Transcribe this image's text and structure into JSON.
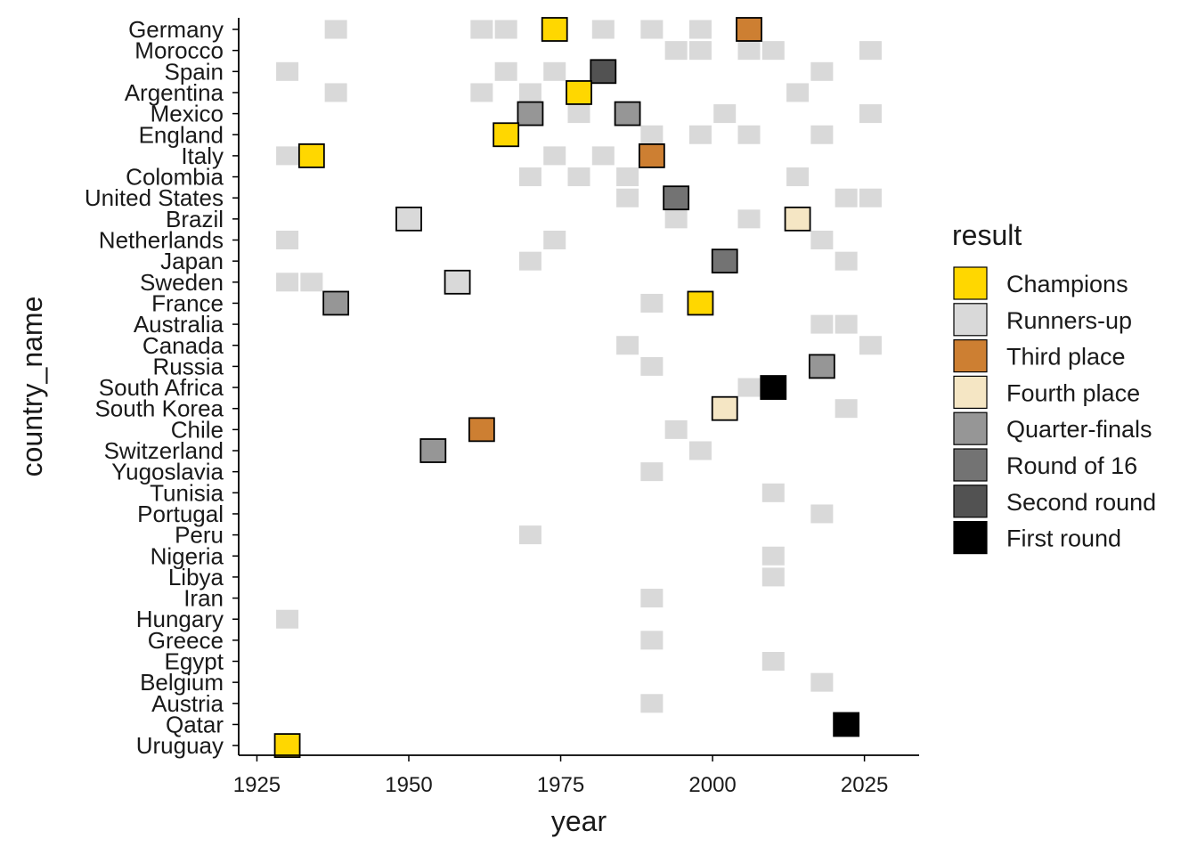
{
  "chart_data": {
    "type": "heatmap",
    "title": "",
    "xlabel": "year",
    "ylabel": "country_name",
    "xlim": [
      1922,
      2034
    ],
    "x_ticks": [
      1925,
      1950,
      1975,
      2000,
      2025
    ],
    "grid": false,
    "legend_position": "right",
    "legend_title": "result",
    "categories": [
      "Germany",
      "Morocco",
      "Spain",
      "Argentina",
      "Mexico",
      "England",
      "Italy",
      "Colombia",
      "United States",
      "Brazil",
      "Netherlands",
      "Japan",
      "Sweden",
      "France",
      "Australia",
      "Canada",
      "Russia",
      "South Africa",
      "South Korea",
      "Chile",
      "Switzerland",
      "Yugoslavia",
      "Tunisia",
      "Portugal",
      "Peru",
      "Nigeria",
      "Libya",
      "Iran",
      "Hungary",
      "Greece",
      "Egypt",
      "Belgium",
      "Austria",
      "Qatar",
      "Uruguay"
    ],
    "legend": [
      {
        "label": "Champions",
        "color": "#FFD700"
      },
      {
        "label": "Runners-up",
        "color": "#D9D9D9"
      },
      {
        "label": "Third place",
        "color": "#CD7F32"
      },
      {
        "label": "Fourth place",
        "color": "#F5E6C4"
      },
      {
        "label": "Quarter-finals",
        "color": "#969696"
      },
      {
        "label": "Round of 16",
        "color": "#737373"
      },
      {
        "label": "Second round",
        "color": "#525252"
      },
      {
        "label": "First round",
        "color": "#000000"
      }
    ],
    "background_color": "#D9D9D9",
    "background_points": [
      {
        "country": "Germany",
        "year": 1938
      },
      {
        "country": "Germany",
        "year": 1962
      },
      {
        "country": "Germany",
        "year": 1966
      },
      {
        "country": "Germany",
        "year": 1982
      },
      {
        "country": "Germany",
        "year": 1990
      },
      {
        "country": "Germany",
        "year": 1998
      },
      {
        "country": "Morocco",
        "year": 1994
      },
      {
        "country": "Morocco",
        "year": 1998
      },
      {
        "country": "Morocco",
        "year": 2006
      },
      {
        "country": "Morocco",
        "year": 2010
      },
      {
        "country": "Morocco",
        "year": 2026
      },
      {
        "country": "Spain",
        "year": 1930
      },
      {
        "country": "Spain",
        "year": 1966
      },
      {
        "country": "Spain",
        "year": 1974
      },
      {
        "country": "Spain",
        "year": 2018
      },
      {
        "country": "Argentina",
        "year": 1938
      },
      {
        "country": "Argentina",
        "year": 1962
      },
      {
        "country": "Argentina",
        "year": 1970
      },
      {
        "country": "Argentina",
        "year": 2014
      },
      {
        "country": "Mexico",
        "year": 1978
      },
      {
        "country": "Mexico",
        "year": 2002
      },
      {
        "country": "Mexico",
        "year": 2026
      },
      {
        "country": "England",
        "year": 1990
      },
      {
        "country": "England",
        "year": 1998
      },
      {
        "country": "England",
        "year": 2006
      },
      {
        "country": "England",
        "year": 2018
      },
      {
        "country": "Italy",
        "year": 1930
      },
      {
        "country": "Italy",
        "year": 1974
      },
      {
        "country": "Italy",
        "year": 1982
      },
      {
        "country": "Colombia",
        "year": 1970
      },
      {
        "country": "Colombia",
        "year": 1978
      },
      {
        "country": "Colombia",
        "year": 1986
      },
      {
        "country": "Colombia",
        "year": 2014
      },
      {
        "country": "United States",
        "year": 1986
      },
      {
        "country": "United States",
        "year": 2022
      },
      {
        "country": "United States",
        "year": 2026
      },
      {
        "country": "Brazil",
        "year": 1994
      },
      {
        "country": "Brazil",
        "year": 2006
      },
      {
        "country": "Netherlands",
        "year": 1930
      },
      {
        "country": "Netherlands",
        "year": 1974
      },
      {
        "country": "Netherlands",
        "year": 2018
      },
      {
        "country": "Japan",
        "year": 1970
      },
      {
        "country": "Japan",
        "year": 2022
      },
      {
        "country": "Sweden",
        "year": 1930
      },
      {
        "country": "Sweden",
        "year": 1934
      },
      {
        "country": "France",
        "year": 1990
      },
      {
        "country": "Australia",
        "year": 2018
      },
      {
        "country": "Australia",
        "year": 2022
      },
      {
        "country": "Canada",
        "year": 1986
      },
      {
        "country": "Canada",
        "year": 2026
      },
      {
        "country": "Russia",
        "year": 1990
      },
      {
        "country": "South Africa",
        "year": 2006
      },
      {
        "country": "South Korea",
        "year": 2022
      },
      {
        "country": "Chile",
        "year": 1994
      },
      {
        "country": "Switzerland",
        "year": 1998
      },
      {
        "country": "Yugoslavia",
        "year": 1990
      },
      {
        "country": "Tunisia",
        "year": 2010
      },
      {
        "country": "Portugal",
        "year": 2018
      },
      {
        "country": "Peru",
        "year": 1970
      },
      {
        "country": "Nigeria",
        "year": 2010
      },
      {
        "country": "Libya",
        "year": 2010
      },
      {
        "country": "Iran",
        "year": 1990
      },
      {
        "country": "Hungary",
        "year": 1930
      },
      {
        "country": "Greece",
        "year": 1990
      },
      {
        "country": "Egypt",
        "year": 2010
      },
      {
        "country": "Belgium",
        "year": 2018
      },
      {
        "country": "Austria",
        "year": 1990
      }
    ],
    "hosts": [
      {
        "country": "Germany",
        "year": 1974,
        "result": "Champions"
      },
      {
        "country": "Germany",
        "year": 2006,
        "result": "Third place"
      },
      {
        "country": "Spain",
        "year": 1982,
        "result": "Second round"
      },
      {
        "country": "Argentina",
        "year": 1978,
        "result": "Champions"
      },
      {
        "country": "Mexico",
        "year": 1970,
        "result": "Quarter-finals"
      },
      {
        "country": "Mexico",
        "year": 1986,
        "result": "Quarter-finals"
      },
      {
        "country": "England",
        "year": 1966,
        "result": "Champions"
      },
      {
        "country": "Italy",
        "year": 1934,
        "result": "Champions"
      },
      {
        "country": "Italy",
        "year": 1990,
        "result": "Third place"
      },
      {
        "country": "United States",
        "year": 1994,
        "result": "Round of 16"
      },
      {
        "country": "Brazil",
        "year": 1950,
        "result": "Runners-up"
      },
      {
        "country": "Brazil",
        "year": 2014,
        "result": "Fourth place"
      },
      {
        "country": "Japan",
        "year": 2002,
        "result": "Round of 16"
      },
      {
        "country": "Sweden",
        "year": 1958,
        "result": "Runners-up"
      },
      {
        "country": "France",
        "year": 1938,
        "result": "Quarter-finals"
      },
      {
        "country": "France",
        "year": 1998,
        "result": "Champions"
      },
      {
        "country": "Russia",
        "year": 2018,
        "result": "Quarter-finals"
      },
      {
        "country": "South Africa",
        "year": 2010,
        "result": "First round"
      },
      {
        "country": "South Korea",
        "year": 2002,
        "result": "Fourth place"
      },
      {
        "country": "Chile",
        "year": 1962,
        "result": "Third place"
      },
      {
        "country": "Switzerland",
        "year": 1954,
        "result": "Quarter-finals"
      },
      {
        "country": "Qatar",
        "year": 2022,
        "result": "First round"
      },
      {
        "country": "Uruguay",
        "year": 1930,
        "result": "Champions"
      }
    ]
  }
}
